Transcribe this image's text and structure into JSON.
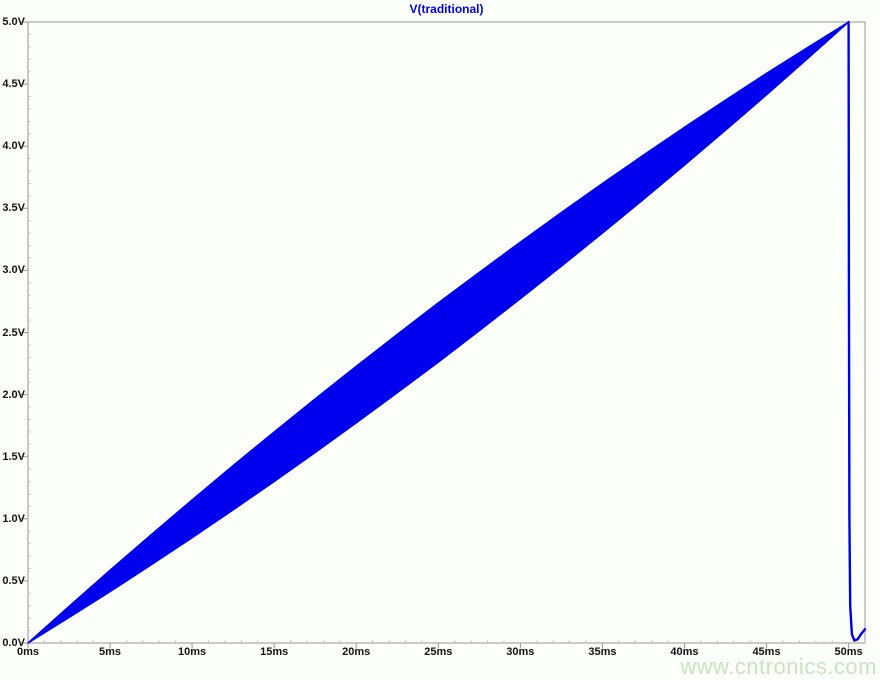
{
  "window": {
    "background": "#fcfef9"
  },
  "chart_data": {
    "type": "area",
    "title": "V(traditional)",
    "xlabel": "",
    "ylabel": "",
    "x_unit": "ms",
    "y_unit": "V",
    "xlim": [
      0,
      51
    ],
    "ylim": [
      0,
      5
    ],
    "grid": false,
    "legend_position": "top-center",
    "x_ticks": [
      {
        "t": 0,
        "label": "0ms"
      },
      {
        "t": 5,
        "label": "5ms"
      },
      {
        "t": 10,
        "label": "10ms"
      },
      {
        "t": 15,
        "label": "15ms"
      },
      {
        "t": 20,
        "label": "20ms"
      },
      {
        "t": 25,
        "label": "25ms"
      },
      {
        "t": 30,
        "label": "30ms"
      },
      {
        "t": 35,
        "label": "35ms"
      },
      {
        "t": 40,
        "label": "40ms"
      },
      {
        "t": 45,
        "label": "45ms"
      },
      {
        "t": 50,
        "label": "50ms"
      }
    ],
    "y_ticks": [
      {
        "v": 0.0,
        "label": "0.0V"
      },
      {
        "v": 0.5,
        "label": "0.5V"
      },
      {
        "v": 1.0,
        "label": "1.0V"
      },
      {
        "v": 1.5,
        "label": "1.5V"
      },
      {
        "v": 2.0,
        "label": "2.0V"
      },
      {
        "v": 2.5,
        "label": "2.5V"
      },
      {
        "v": 3.0,
        "label": "3.0V"
      },
      {
        "v": 3.5,
        "label": "3.5V"
      },
      {
        "v": 4.0,
        "label": "4.0V"
      },
      {
        "v": 4.5,
        "label": "4.5V"
      },
      {
        "v": 5.0,
        "label": "5.0V"
      }
    ],
    "x_minor_step_ms": 1,
    "y_minor_step_v": 0.1,
    "series": [
      {
        "name": "V(traditional)",
        "color": "#0000ee",
        "kind": "ripple-band",
        "description": "Linear ramp 0V to 5V over 0-50ms carrying high-frequency ripple; ripple envelope is widest (~±0.24V) at 25ms and converges at both ends; after 50ms the voltage collapses to ~0.1V",
        "band": {
          "x_ms": [
            0,
            2.5,
            5,
            7.5,
            10,
            12.5,
            15,
            17.5,
            20,
            22.5,
            25,
            27.5,
            30,
            32.5,
            35,
            37.5,
            40,
            42.5,
            45,
            47.5,
            50
          ],
          "upper_v": [
            0,
            0.295,
            0.586,
            0.871,
            1.152,
            1.428,
            1.7,
            1.966,
            2.228,
            2.485,
            2.738,
            2.985,
            3.228,
            3.466,
            3.7,
            3.928,
            4.152,
            4.371,
            4.586,
            4.795,
            5.0
          ],
          "lower_v": [
            0,
            0.205,
            0.414,
            0.629,
            0.848,
            1.072,
            1.3,
            1.534,
            1.772,
            2.015,
            2.262,
            2.515,
            2.772,
            3.034,
            3.3,
            3.572,
            3.848,
            4.129,
            4.414,
            4.705,
            5.0
          ]
        },
        "tail": {
          "x_ms": [
            50,
            50.02,
            50.05,
            50.1,
            50.2,
            50.35,
            50.55,
            50.75,
            51.0
          ],
          "v": [
            5.0,
            3.0,
            1.0,
            0.3,
            0.07,
            0.02,
            0.03,
            0.07,
            0.11
          ]
        }
      }
    ]
  },
  "axes": {
    "border_color": "#a8a8a8",
    "major_tick_color": "#9a9a9a",
    "minor_tick_color": "#c0c0c0",
    "label_color": "#141414"
  },
  "watermark": {
    "text": "www.cntronics.com",
    "color": "#9ccf8e",
    "opacity": 0.55
  }
}
